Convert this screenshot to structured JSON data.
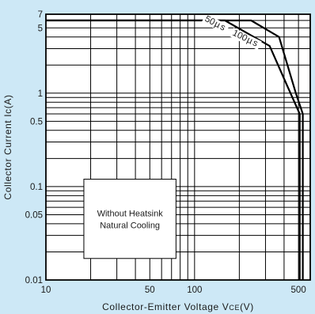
{
  "chart_data": {
    "type": "line",
    "title": "",
    "xlabel": "Collector-Emitter Voltage V",
    "xlabel_sub": "CE",
    "xlabel_unit": "(V)",
    "ylabel": "Collector Current Ic(A)",
    "xscale": "log",
    "yscale": "log",
    "xlim": [
      10,
      600
    ],
    "ylim": [
      0.01,
      7
    ],
    "grid": true,
    "background": "#ffffff",
    "page_background": "#cde8f6",
    "line_color": "#000000",
    "x_ticks": [
      {
        "value": 10,
        "label": "10"
      },
      {
        "value": 50,
        "label": "50"
      },
      {
        "value": 100,
        "label": "100"
      },
      {
        "value": 500,
        "label": "500"
      }
    ],
    "y_ticks": [
      {
        "value": 0.01,
        "label": "0.01"
      },
      {
        "value": 0.05,
        "label": "0.05"
      },
      {
        "value": 0.1,
        "label": "0.1"
      },
      {
        "value": 0.5,
        "label": "0.5"
      },
      {
        "value": 1,
        "label": "1"
      },
      {
        "value": 5,
        "label": "5"
      },
      {
        "value": 7,
        "label": "7"
      }
    ],
    "series": [
      {
        "name": "50µs",
        "label_text": "50",
        "label_unit": "µs",
        "points": [
          [
            10,
            6
          ],
          [
            240,
            6
          ],
          [
            370,
            4
          ],
          [
            480,
            1
          ],
          [
            535,
            0.6
          ],
          [
            535,
            0.01
          ]
        ]
      },
      {
        "name": "100µs",
        "label_text": "100",
        "label_unit": "µs",
        "points": [
          [
            10,
            6
          ],
          [
            160,
            6
          ],
          [
            320,
            3.2
          ],
          [
            420,
            1.2
          ],
          [
            510,
            0.6
          ],
          [
            510,
            0.01
          ]
        ]
      }
    ],
    "annotation": {
      "lines": [
        "Without Heatsink",
        "Natural Cooling"
      ],
      "box_x": [
        18,
        75
      ],
      "box_y": [
        0.017,
        0.12
      ]
    }
  }
}
